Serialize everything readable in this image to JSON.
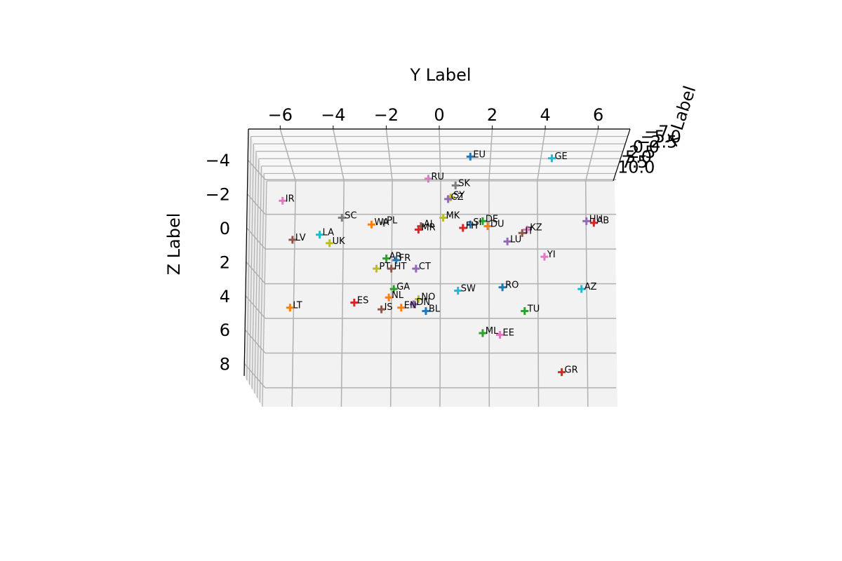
{
  "chart_data": {
    "type": "scatter",
    "projection": "3d",
    "title": "",
    "xlabel": "X Label",
    "ylabel": "Y Label",
    "zlabel": "Z Label",
    "grid": true,
    "ylim": [
      -7,
      7
    ],
    "zlim": [
      -5,
      9.5
    ],
    "y_ticks": [
      "−6",
      "−4",
      "−2",
      "0",
      "2",
      "4",
      "6"
    ],
    "z_ticks": [
      "−4",
      "−2",
      "0",
      "2",
      "4",
      "6",
      "8"
    ],
    "x_ticks": [
      "−7",
      "−5.0",
      "−2.5",
      "0.0",
      "2.5",
      "5.0",
      "7.5",
      "10.0"
    ],
    "marker": "+",
    "points": [
      {
        "label": "EU",
        "y": 1.6,
        "z": -4.2,
        "color": "#1f77b4"
      },
      {
        "label": "GE",
        "y": 4.9,
        "z": -4.1,
        "color": "#17becf"
      },
      {
        "label": "RU",
        "y": -0.1,
        "z": -2.9,
        "color": "#e377c2"
      },
      {
        "label": "SK",
        "y": 1.0,
        "z": -2.5,
        "color": "#7f7f7f"
      },
      {
        "label": "SY",
        "y": 0.8,
        "z": -1.8,
        "color": "#bcbd22"
      },
      {
        "label": "CZ",
        "y": 0.7,
        "z": -1.7,
        "color": "#9467bd"
      },
      {
        "label": "IR",
        "y": -6.0,
        "z": -1.6,
        "color": "#e377c2"
      },
      {
        "label": "SC",
        "y": -3.6,
        "z": -0.6,
        "color": "#7f7f7f"
      },
      {
        "label": "MK",
        "y": 0.5,
        "z": -0.6,
        "color": "#bcbd22"
      },
      {
        "label": "HU",
        "y": 6.3,
        "z": -0.4,
        "color": "#9467bd"
      },
      {
        "label": "AB",
        "y": 6.6,
        "z": -0.3,
        "color": "#d62728"
      },
      {
        "label": "PL",
        "y": -1.9,
        "z": -0.3,
        "color": "#7f7f7f"
      },
      {
        "label": "DE",
        "y": 2.1,
        "z": -0.4,
        "color": "#2ca02c"
      },
      {
        "label": "WA",
        "y": -2.4,
        "z": -0.2,
        "color": "#ff7f0e"
      },
      {
        "label": "DU",
        "y": 2.3,
        "z": -0.1,
        "color": "#ff7f0e"
      },
      {
        "label": "SI",
        "y": 1.6,
        "z": -0.2,
        "color": "#1f77b4"
      },
      {
        "label": "AL",
        "y": -0.4,
        "z": -0.1,
        "color": "#8c564b"
      },
      {
        "label": "FH",
        "y": 1.3,
        "z": 0.0,
        "color": "#d62728"
      },
      {
        "label": "KZ",
        "y": 3.9,
        "z": 0.1,
        "color": "#e377c2"
      },
      {
        "label": "MR",
        "y": -0.5,
        "z": 0.1,
        "color": "#d62728"
      },
      {
        "label": "IT",
        "y": 3.7,
        "z": 0.3,
        "color": "#8c564b"
      },
      {
        "label": "LA",
        "y": -4.5,
        "z": 0.4,
        "color": "#17becf"
      },
      {
        "label": "LU",
        "y": 3.1,
        "z": 0.8,
        "color": "#9467bd"
      },
      {
        "label": "LV",
        "y": -5.6,
        "z": 0.7,
        "color": "#8c564b"
      },
      {
        "label": "UK",
        "y": -4.1,
        "z": 0.9,
        "color": "#bcbd22"
      },
      {
        "label": "YI",
        "y": 4.6,
        "z": 1.7,
        "color": "#e377c2"
      },
      {
        "label": "AR",
        "y": -1.8,
        "z": 1.8,
        "color": "#2ca02c"
      },
      {
        "label": "FR",
        "y": -1.4,
        "z": 1.9,
        "color": "#1f77b4"
      },
      {
        "label": "PT",
        "y": -2.2,
        "z": 2.4,
        "color": "#bcbd22"
      },
      {
        "label": "HT",
        "y": -1.6,
        "z": 2.4,
        "color": "#8c564b"
      },
      {
        "label": "CT",
        "y": -0.6,
        "z": 2.4,
        "color": "#9467bd"
      },
      {
        "label": "RO",
        "y": 2.9,
        "z": 3.5,
        "color": "#1f77b4"
      },
      {
        "label": "AZ",
        "y": 6.1,
        "z": 3.6,
        "color": "#17becf"
      },
      {
        "label": "GA",
        "y": -1.5,
        "z": 3.6,
        "color": "#2ca02c"
      },
      {
        "label": "SW",
        "y": 1.1,
        "z": 3.7,
        "color": "#17becf"
      },
      {
        "label": "NL",
        "y": -1.7,
        "z": 4.1,
        "color": "#ff7f0e"
      },
      {
        "label": "NO",
        "y": -0.5,
        "z": 4.2,
        "color": "#bcbd22"
      },
      {
        "label": "ES",
        "y": -3.1,
        "z": 4.4,
        "color": "#d62728"
      },
      {
        "label": "DN",
        "y": -0.7,
        "z": 4.5,
        "color": "#9467bd"
      },
      {
        "label": "LT",
        "y": -5.7,
        "z": 4.7,
        "color": "#ff7f0e"
      },
      {
        "label": "EN",
        "y": -1.2,
        "z": 4.7,
        "color": "#ff7f0e"
      },
      {
        "label": "IS",
        "y": -2.0,
        "z": 4.8,
        "color": "#8c564b"
      },
      {
        "label": "BL",
        "y": -0.2,
        "z": 4.9,
        "color": "#1f77b4"
      },
      {
        "label": "TU",
        "y": 3.8,
        "z": 4.9,
        "color": "#2ca02c"
      },
      {
        "label": "ML",
        "y": 2.1,
        "z": 6.2,
        "color": "#2ca02c"
      },
      {
        "label": "EE",
        "y": 2.8,
        "z": 6.3,
        "color": "#e377c2"
      },
      {
        "label": "GR",
        "y": 5.3,
        "z": 8.5,
        "color": "#d62728"
      }
    ]
  }
}
